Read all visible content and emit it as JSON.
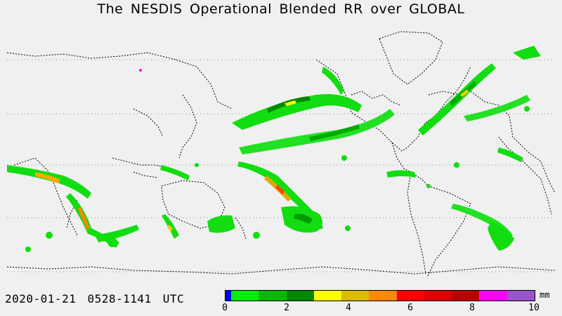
{
  "title": "The NESDIS  Operational  Blended RR over GLOBAL",
  "timestamp": "2020-01-21  0528-1141  UTC",
  "legend": {
    "units": "mm",
    "ticks": [
      "0",
      "2",
      "4",
      "6",
      "8",
      "10"
    ],
    "colors": [
      "#0000ff",
      "#00ee00",
      "#00bb00",
      "#008800",
      "#ffff00",
      "#ddbb00",
      "#ff8800",
      "#ff0000",
      "#dd0000",
      "#bb0000",
      "#ff00ff",
      "#9955cc"
    ]
  },
  "map": {
    "colors": {
      "background": "#f0f0f0",
      "coastline": "#000000",
      "gridline": "#888888"
    },
    "features": [
      "coastlines",
      "latitude-gridlines",
      "precipitation-rain-rate"
    ]
  }
}
